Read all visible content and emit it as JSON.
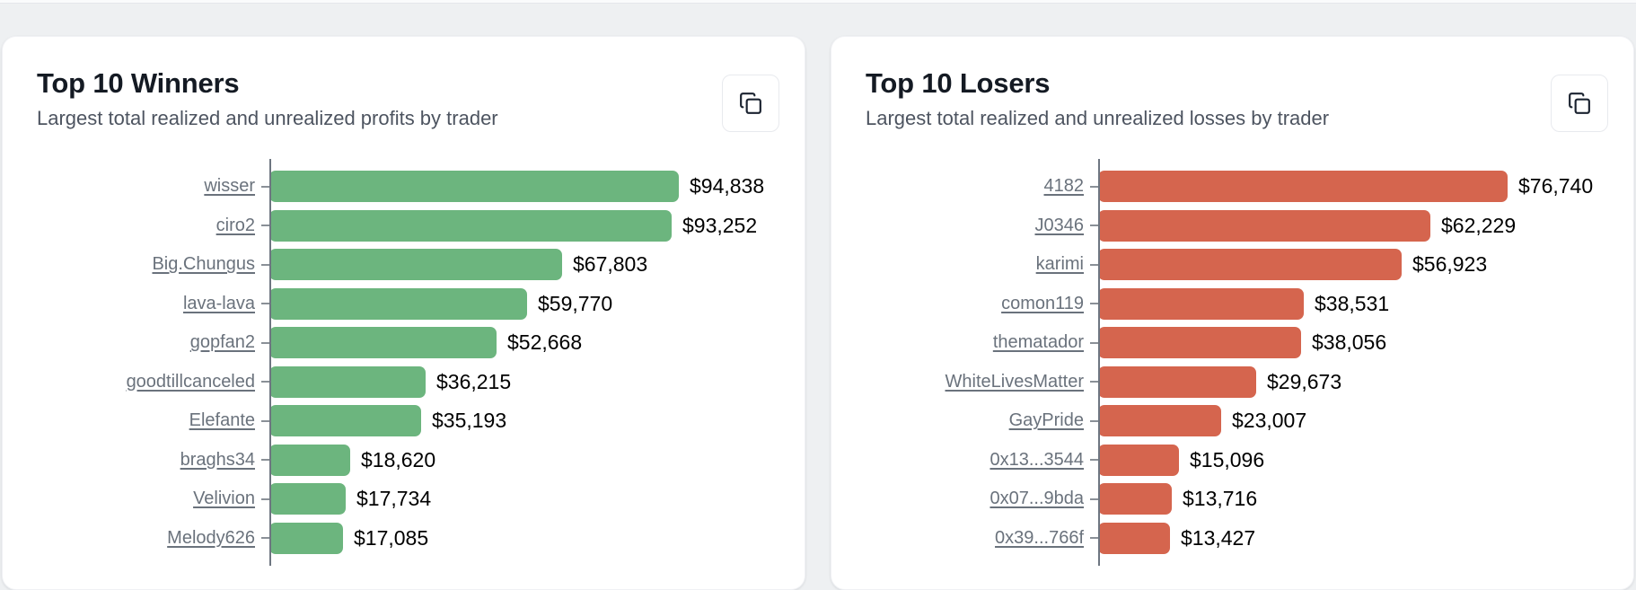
{
  "ui": {
    "icons": {
      "card_action": "copy-icon"
    },
    "colors": {
      "page_bg": "#eef0f2",
      "card_bg": "#ffffff",
      "title_text": "#141a23",
      "subtitle_text": "#4d5460",
      "category_link": "#6a727c",
      "value_text": "#000000",
      "axis_line": "#6e7681",
      "winners_bar": "#6cb57e",
      "losers_bar": "#d5654e"
    }
  },
  "chart_data": [
    {
      "type": "bar",
      "orientation": "horizontal",
      "title": "Top 10 Winners",
      "subtitle": "Largest total realized and unrealized profits by trader",
      "bar_color": "#6cb57e",
      "grid": false,
      "legend": "none",
      "xlim": [
        0,
        94838
      ],
      "categories": [
        "wisser",
        "ciro2",
        "Big.Chungus",
        "lava-lava",
        "gopfan2",
        "goodtillcanceled",
        "Elefante",
        "braghs34",
        "Velivion",
        "Melody626"
      ],
      "values": [
        94838,
        93252,
        67803,
        59770,
        52668,
        36215,
        35193,
        18620,
        17734,
        17085
      ],
      "value_labels": [
        "$94,838",
        "$93,252",
        "$67,803",
        "$59,770",
        "$52,668",
        "$36,215",
        "$35,193",
        "$18,620",
        "$17,734",
        "$17,085"
      ]
    },
    {
      "type": "bar",
      "orientation": "horizontal",
      "title": "Top 10 Losers",
      "subtitle": "Largest total realized and unrealized losses by trader",
      "bar_color": "#d5654e",
      "grid": false,
      "legend": "none",
      "xlim": [
        0,
        76740
      ],
      "categories": [
        "4182",
        "J0346",
        "karimi",
        "comon119",
        "thematador",
        "WhiteLivesMatter",
        "GayPride",
        "0x13...3544",
        "0x07...9bda",
        "0x39...766f"
      ],
      "values": [
        76740,
        62229,
        56923,
        38531,
        38056,
        29673,
        23007,
        15096,
        13716,
        13427
      ],
      "value_labels": [
        "$76,740",
        "$62,229",
        "$56,923",
        "$38,531",
        "$38,056",
        "$29,673",
        "$23,007",
        "$15,096",
        "$13,716",
        "$13,427"
      ]
    }
  ]
}
